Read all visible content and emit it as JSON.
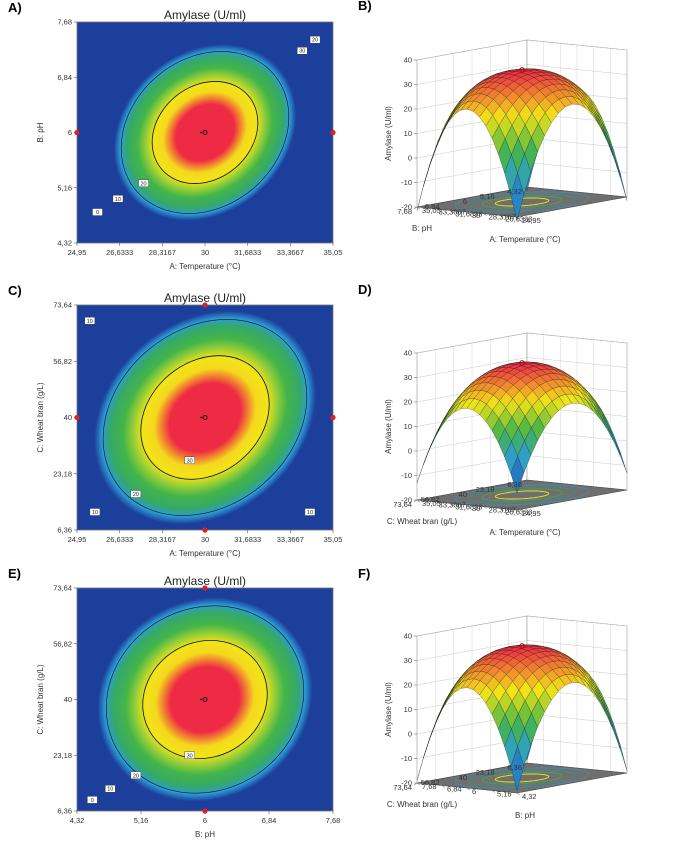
{
  "colors": {
    "low": "#1d3f9c",
    "mid_low": "#2c9cd6",
    "mid": "#44b548",
    "mid_high": "#f2e419",
    "high": "#ee2a45",
    "design_point": "#e02020",
    "floor": "#6f6f6f"
  },
  "chart_data": [
    {
      "panel": "A)",
      "type": "heatmap",
      "title": "Amylase (U/ml)",
      "xlabel": "A: Temperature (°C)",
      "ylabel": "B: pH",
      "x_ticks": [
        "24,95",
        "26,6333",
        "28,3167",
        "30",
        "31,6833",
        "33,3667",
        "35,05"
      ],
      "y_ticks": [
        "4,32",
        "5,16",
        "6",
        "6,84",
        "7,68"
      ],
      "xlim": [
        24.95,
        35.05
      ],
      "ylim": [
        4.32,
        7.68
      ],
      "contour_labels": [
        "30",
        "20",
        "20",
        "10",
        "0"
      ],
      "center_point": [
        30,
        6
      ],
      "design_points": [
        [
          24.95,
          6
        ],
        [
          35.05,
          6
        ]
      ]
    },
    {
      "panel": "B)",
      "type": "surface",
      "zlabel": "Amylase (U/ml)",
      "xlabel": "A: Temperature (°C)",
      "ylabel": "B: pH",
      "z_ticks": [
        "-20",
        "-10",
        "0",
        "10",
        "20",
        "30",
        "40"
      ],
      "zlim": [
        -20,
        40
      ],
      "x_ticks": [
        "24,95",
        "26,6333",
        "28,3167",
        "30",
        "31,6833",
        "33,3667",
        "35,05"
      ],
      "y_ticks": [
        "4,32",
        "5,16",
        "6",
        "6,84",
        "7,68"
      ],
      "peak_z": 34,
      "edge_z": 10,
      "corner_z": -25
    },
    {
      "panel": "C)",
      "type": "heatmap",
      "title": "Amylase (U/ml)",
      "xlabel": "A: Temperature (°C)",
      "ylabel": "C: Wheat bran (g/L)",
      "x_ticks": [
        "24,95",
        "26,6333",
        "28,3167",
        "30",
        "31,6833",
        "33,3667",
        "35,05"
      ],
      "y_ticks": [
        "6,36",
        "23,18",
        "40",
        "56,82",
        "73,64"
      ],
      "xlim": [
        24.95,
        35.05
      ],
      "ylim": [
        6.36,
        73.64
      ],
      "contour_labels": [
        "10",
        "30",
        "20",
        "10",
        "10"
      ],
      "center_point": [
        30,
        40
      ],
      "design_points": [
        [
          24.95,
          40
        ],
        [
          35.05,
          40
        ],
        [
          30,
          73.64
        ],
        [
          30,
          6.36
        ]
      ]
    },
    {
      "panel": "D)",
      "type": "surface",
      "zlabel": "Amylase (U/ml)",
      "xlabel": "A: Temperature (°C)",
      "ylabel": "C: Wheat bran (g/L)",
      "z_ticks": [
        "-20",
        "-10",
        "0",
        "10",
        "20",
        "30",
        "40"
      ],
      "zlim": [
        -20,
        40
      ],
      "x_ticks": [
        "24,95",
        "26,6333",
        "28,3167",
        "30",
        "31,6833",
        "33,3667",
        "35,05"
      ],
      "y_ticks": [
        "6,36",
        "23,18",
        "40",
        "56,82",
        "73,64"
      ],
      "peak_z": 34,
      "edge_z": 5,
      "corner_z": -15
    },
    {
      "panel": "E)",
      "type": "heatmap",
      "title": "Amylase (U/ml)",
      "xlabel": "B: pH",
      "ylabel": "C: Wheat bran (g/L)",
      "x_ticks": [
        "4,32",
        "5,16",
        "6",
        "6,84",
        "7,68"
      ],
      "y_ticks": [
        "6,36",
        "23,18",
        "40",
        "56,82",
        "73,64"
      ],
      "xlim": [
        4.32,
        7.68
      ],
      "ylim": [
        6.36,
        73.64
      ],
      "contour_labels": [
        "30",
        "20",
        "10",
        "0"
      ],
      "center_point": [
        6,
        40
      ],
      "design_points": [
        [
          6,
          73.64
        ],
        [
          6,
          6.36
        ]
      ]
    },
    {
      "panel": "F)",
      "type": "surface",
      "zlabel": "Amylase (U/ml)",
      "xlabel": "B: pH",
      "ylabel": "C: Wheat bran (g/L)",
      "z_ticks": [
        "-20",
        "-10",
        "0",
        "10",
        "20",
        "30",
        "40"
      ],
      "zlim": [
        -20,
        40
      ],
      "x_ticks": [
        "4,32",
        "5,16",
        "6",
        "6,84",
        "7,68"
      ],
      "y_ticks": [
        "6,36",
        "23,18",
        "40",
        "56,82",
        "73,64"
      ],
      "peak_z": 34,
      "edge_z": 8,
      "corner_z": -22
    }
  ]
}
